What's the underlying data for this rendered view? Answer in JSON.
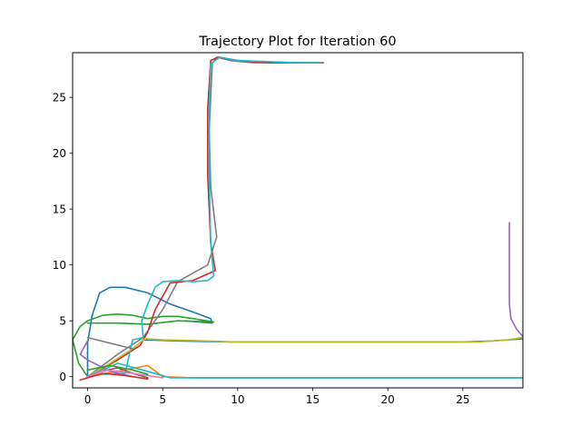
{
  "chart_data": {
    "type": "line",
    "title": "Trajectory Plot for Iteration 60",
    "xlabel": "",
    "ylabel": "",
    "xlim": [
      -1.0,
      29.0
    ],
    "ylim": [
      -1.0,
      29.0
    ],
    "xticks": [
      0,
      5,
      10,
      15,
      20,
      25
    ],
    "yticks": [
      0,
      5,
      10,
      15,
      20,
      25
    ],
    "grid": false,
    "legend": "none",
    "colors": [
      "#1f77b4",
      "#ff7f0e",
      "#2ca02c",
      "#d62728",
      "#9467bd",
      "#8c564b",
      "#e377c2",
      "#7f7f7f",
      "#bcbd22",
      "#17becf"
    ],
    "series": [
      {
        "color": "#1f77b4",
        "points": [
          [
            0,
            0
          ],
          [
            0,
            3
          ],
          [
            0.3,
            5.5
          ],
          [
            0.8,
            7.5
          ],
          [
            1.5,
            8
          ],
          [
            2.5,
            8
          ],
          [
            4,
            7.5
          ],
          [
            5.5,
            6.5
          ],
          [
            7,
            5.8
          ],
          [
            8.2,
            5.2
          ],
          [
            8.3,
            4.8
          ],
          [
            6.5,
            5
          ]
        ]
      },
      {
        "color": "#2ca02c",
        "points": [
          [
            0,
            0
          ],
          [
            -0.6,
            1.2
          ],
          [
            -1,
            3.3
          ],
          [
            -0.5,
            4.5
          ],
          [
            0,
            5
          ],
          [
            1,
            5.5
          ],
          [
            2,
            5.6
          ],
          [
            3,
            5.5
          ],
          [
            4,
            5.2
          ],
          [
            5,
            5.4
          ],
          [
            6,
            5.4
          ],
          [
            7,
            5.2
          ],
          [
            8.4,
            4.9
          ],
          [
            6,
            5
          ],
          [
            4,
            4.7
          ],
          [
            2,
            4.8
          ],
          [
            0,
            4.8
          ]
        ]
      },
      {
        "color": "#7f7f7f",
        "points": [
          [
            0,
            0
          ],
          [
            2,
            2
          ],
          [
            3.7,
            3.5
          ],
          [
            5,
            6
          ],
          [
            6,
            8.5
          ],
          [
            8,
            10
          ],
          [
            8.6,
            12.5
          ],
          [
            8.2,
            17
          ],
          [
            8.1,
            22
          ],
          [
            8.2,
            25
          ],
          [
            8.3,
            28
          ],
          [
            8.6,
            28.6
          ],
          [
            9.5,
            28.3
          ],
          [
            11,
            28.1
          ],
          [
            13,
            28.1
          ],
          [
            15.5,
            28.1
          ]
        ]
      },
      {
        "color": "#d62728",
        "points": [
          [
            0,
            0
          ],
          [
            2,
            1.5
          ],
          [
            3.5,
            2.8
          ],
          [
            4,
            4
          ],
          [
            4.5,
            6
          ],
          [
            5.5,
            8.4
          ],
          [
            7,
            8.6
          ],
          [
            8.5,
            9.5
          ],
          [
            8.2,
            12
          ],
          [
            8.0,
            18
          ],
          [
            8.0,
            24
          ],
          [
            8.2,
            28.3
          ],
          [
            8.7,
            28.6
          ],
          [
            10,
            28.3
          ],
          [
            12,
            28.1
          ],
          [
            15.7,
            28.1
          ]
        ]
      },
      {
        "color": "#17becf",
        "points": [
          [
            0,
            0
          ],
          [
            1,
            0.2
          ],
          [
            2.5,
            0.3
          ],
          [
            3,
            3.3
          ],
          [
            3.7,
            3.5
          ],
          [
            3.6,
            5
          ],
          [
            4,
            6.5
          ],
          [
            4.5,
            8
          ],
          [
            5,
            8.5
          ],
          [
            6,
            8.6
          ],
          [
            7,
            8.5
          ],
          [
            8,
            8.6
          ],
          [
            8.4,
            9
          ],
          [
            8.2,
            12
          ],
          [
            8.1,
            18
          ],
          [
            8.1,
            24
          ],
          [
            8.2,
            28
          ],
          [
            8.8,
            28.6
          ],
          [
            10,
            28.3
          ],
          [
            12,
            28.2
          ],
          [
            14,
            28.1
          ],
          [
            15.5,
            28.1
          ]
        ]
      },
      {
        "color": "#1f77b4",
        "points": [
          [
            3.7,
            3.3
          ],
          [
            6,
            3.2
          ],
          [
            10,
            3.1
          ],
          [
            15,
            3.1
          ],
          [
            20,
            3.1
          ],
          [
            25,
            3.1
          ],
          [
            27,
            3.2
          ],
          [
            29,
            3.4
          ]
        ]
      },
      {
        "color": "#bcbd22",
        "points": [
          [
            0,
            0
          ],
          [
            1.5,
            1.2
          ],
          [
            3,
            2.5
          ],
          [
            3.8,
            3.4
          ],
          [
            5,
            3.3
          ],
          [
            8,
            3.2
          ],
          [
            10,
            3.1
          ],
          [
            15,
            3.1
          ],
          [
            20,
            3.1
          ],
          [
            26,
            3.1
          ],
          [
            28,
            3.3
          ],
          [
            29,
            3.5
          ]
        ]
      },
      {
        "color": "#ff7f0e",
        "points": [
          [
            0,
            0
          ],
          [
            2,
            0.5
          ],
          [
            4,
            1
          ],
          [
            5,
            0
          ],
          [
            7,
            -0.1
          ],
          [
            10,
            -0.1
          ],
          [
            15,
            -0.1
          ],
          [
            20,
            -0.1
          ],
          [
            25,
            -0.1
          ],
          [
            29,
            -0.1
          ]
        ]
      },
      {
        "color": "#17becf",
        "points": [
          [
            0,
            0
          ],
          [
            2,
            1.2
          ],
          [
            4.2,
            0.4
          ],
          [
            5.5,
            -0.1
          ],
          [
            8,
            -0.1
          ],
          [
            12,
            -0.1
          ],
          [
            18,
            -0.1
          ],
          [
            24,
            -0.1
          ],
          [
            29,
            -0.1
          ]
        ]
      },
      {
        "color": "#9467bd",
        "points": [
          [
            28.1,
            13.8
          ],
          [
            28.1,
            10
          ],
          [
            28.1,
            6.5
          ],
          [
            28.2,
            5.2
          ],
          [
            28.6,
            4.2
          ],
          [
            29,
            3.6
          ]
        ]
      },
      {
        "color": "#9467bd",
        "points": [
          [
            0,
            3.2
          ],
          [
            -0.5,
            2
          ],
          [
            0,
            1.5
          ],
          [
            1.5,
            0.5
          ],
          [
            3,
            0
          ]
        ]
      },
      {
        "color": "#8c564b",
        "points": [
          [
            0,
            0
          ],
          [
            1,
            0.5
          ],
          [
            2,
            0.8
          ],
          [
            3,
            0.3
          ],
          [
            4,
            -0.1
          ]
        ]
      },
      {
        "color": "#e377c2",
        "points": [
          [
            0,
            0
          ],
          [
            1.2,
            0.6
          ],
          [
            2.5,
            0.4
          ],
          [
            4,
            0.1
          ],
          [
            5,
            -0.1
          ]
        ]
      },
      {
        "color": "#d62728",
        "points": [
          [
            -0.5,
            -0.3
          ],
          [
            1,
            0.3
          ],
          [
            2.5,
            0.1
          ],
          [
            4,
            -0.2
          ]
        ]
      },
      {
        "color": "#2ca02c",
        "points": [
          [
            0,
            0.6
          ],
          [
            1.5,
            1.0
          ],
          [
            3,
            0.6
          ],
          [
            4,
            0.2
          ]
        ]
      },
      {
        "color": "#7f7f7f",
        "points": [
          [
            0,
            3.5
          ],
          [
            1.5,
            3
          ],
          [
            3,
            2.5
          ]
        ]
      }
    ]
  }
}
